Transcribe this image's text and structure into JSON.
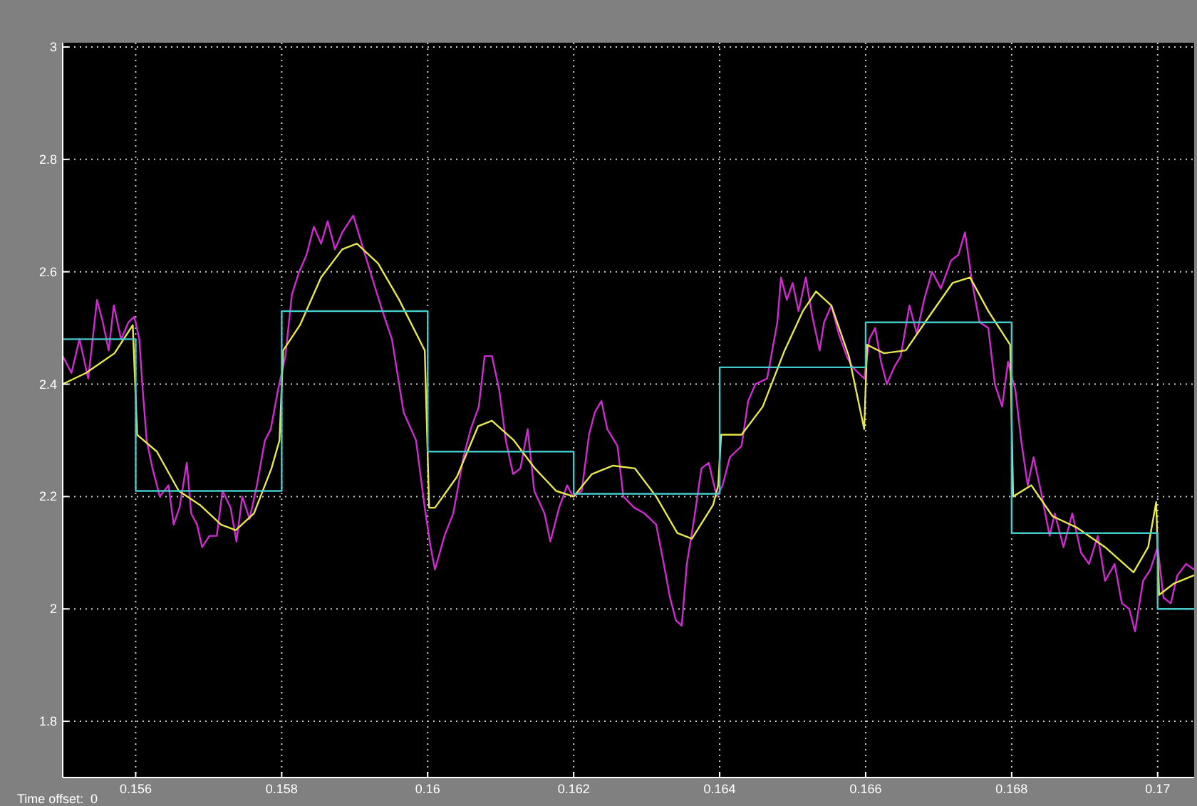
{
  "chart_data": {
    "type": "line",
    "xlim": [
      0.155,
      0.1705
    ],
    "ylim": [
      1.7,
      3
    ],
    "xticks": [
      0.156,
      0.158,
      0.16,
      0.162,
      0.164,
      0.166,
      0.168,
      0.17
    ],
    "yticks": [
      1.8,
      2,
      2.2,
      2.4,
      2.6,
      2.8,
      3
    ],
    "grid": true,
    "line_style": "solid",
    "marker": "none",
    "annotations": [
      "Time offset:  0"
    ],
    "series": [
      {
        "color": "#d22ad2",
        "x": [
          0.155,
          0.15512,
          0.15523,
          0.15535,
          0.15547,
          0.15555,
          0.15563,
          0.1557,
          0.1558,
          0.1559,
          0.15598,
          0.15605,
          0.15609,
          0.15615,
          0.15623,
          0.15633,
          0.15645,
          0.15652,
          0.1566,
          0.1567,
          0.15676,
          0.15684,
          0.15691,
          0.15701,
          0.15711,
          0.15719,
          0.1573,
          0.15738,
          0.15746,
          0.15756,
          0.15766,
          0.15777,
          0.15785,
          0.15795,
          0.15805,
          0.15814,
          0.15824,
          0.15834,
          0.15844,
          0.15854,
          0.15863,
          0.15873,
          0.15883,
          0.15898,
          0.15912,
          0.15926,
          0.15938,
          0.15951,
          0.15967,
          0.15984,
          0.15996,
          0.16004,
          0.1601,
          0.16023,
          0.16035,
          0.16049,
          0.16059,
          0.1607,
          0.16078,
          0.16088,
          0.16098,
          0.16107,
          0.16117,
          0.16127,
          0.16137,
          0.16146,
          0.1616,
          0.16168,
          0.1618,
          0.16191,
          0.16199,
          0.16211,
          0.16221,
          0.16229,
          0.16238,
          0.16246,
          0.1626,
          0.16268,
          0.16283,
          0.16297,
          0.16313,
          0.16322,
          0.16332,
          0.1634,
          0.16348,
          0.16355,
          0.16365,
          0.16375,
          0.16385,
          0.16396,
          0.16404,
          0.16414,
          0.16422,
          0.1643,
          0.16439,
          0.16449,
          0.16465,
          0.16479,
          0.16484,
          0.16492,
          0.165,
          0.16508,
          0.16518,
          0.16527,
          0.16537,
          0.16543,
          0.16553,
          0.16563,
          0.16574,
          0.16582,
          0.1659,
          0.16598,
          0.16605,
          0.16613,
          0.16621,
          0.16629,
          0.16639,
          0.16648,
          0.1666,
          0.1667,
          0.1668,
          0.16691,
          0.16703,
          0.16717,
          0.16727,
          0.16736,
          0.16746,
          0.16756,
          0.16768,
          0.16777,
          0.16787,
          0.16795,
          0.16805,
          0.16813,
          0.16822,
          0.1683,
          0.1684,
          0.16852,
          0.16859,
          0.16871,
          0.16883,
          0.16895,
          0.16906,
          0.16918,
          0.16928,
          0.16941,
          0.16951,
          0.16961,
          0.16969,
          0.1698,
          0.1699,
          0.17,
          0.17008,
          0.17018,
          0.17027,
          0.17039,
          0.1705
        ],
        "values": [
          2.45,
          2.42,
          2.48,
          2.41,
          2.55,
          2.51,
          2.46,
          2.54,
          2.48,
          2.51,
          2.52,
          2.48,
          2.4,
          2.3,
          2.25,
          2.2,
          2.22,
          2.15,
          2.18,
          2.26,
          2.17,
          2.15,
          2.11,
          2.13,
          2.13,
          2.21,
          2.18,
          2.12,
          2.2,
          2.16,
          2.22,
          2.3,
          2.32,
          2.39,
          2.45,
          2.56,
          2.6,
          2.63,
          2.68,
          2.65,
          2.69,
          2.64,
          2.67,
          2.7,
          2.64,
          2.58,
          2.53,
          2.48,
          2.35,
          2.3,
          2.18,
          2.11,
          2.07,
          2.13,
          2.17,
          2.27,
          2.32,
          2.36,
          2.45,
          2.45,
          2.39,
          2.3,
          2.24,
          2.25,
          2.32,
          2.21,
          2.17,
          2.12,
          2.18,
          2.22,
          2.2,
          2.21,
          2.31,
          2.35,
          2.37,
          2.32,
          2.29,
          2.2,
          2.18,
          2.17,
          2.15,
          2.09,
          2.02,
          1.98,
          1.97,
          2.08,
          2.16,
          2.25,
          2.26,
          2.2,
          2.22,
          2.27,
          2.28,
          2.29,
          2.37,
          2.4,
          2.41,
          2.51,
          2.59,
          2.55,
          2.58,
          2.53,
          2.59,
          2.52,
          2.46,
          2.51,
          2.54,
          2.49,
          2.45,
          2.43,
          2.42,
          2.41,
          2.48,
          2.5,
          2.44,
          2.4,
          2.43,
          2.45,
          2.54,
          2.49,
          2.55,
          2.6,
          2.57,
          2.62,
          2.63,
          2.67,
          2.58,
          2.51,
          2.5,
          2.4,
          2.36,
          2.44,
          2.39,
          2.3,
          2.22,
          2.27,
          2.21,
          2.13,
          2.17,
          2.11,
          2.17,
          2.1,
          2.08,
          2.13,
          2.05,
          2.08,
          2.01,
          2,
          1.96,
          2.05,
          2.07,
          2.11,
          2.02,
          2.01,
          2.06,
          2.08,
          2.07
        ]
      },
      {
        "color": "#e8e84a",
        "x": [
          0.155,
          0.15532,
          0.15571,
          0.15596,
          0.15602,
          0.15629,
          0.15659,
          0.15688,
          0.15717,
          0.15737,
          0.15762,
          0.15786,
          0.15797,
          0.15802,
          0.15825,
          0.15854,
          0.15883,
          0.15903,
          0.15932,
          0.15961,
          0.15996,
          0.16002,
          0.1601,
          0.1604,
          0.16069,
          0.16088,
          0.16118,
          0.16147,
          0.16176,
          0.162,
          0.16225,
          0.16254,
          0.16284,
          0.16313,
          0.16342,
          0.16362,
          0.16391,
          0.16398,
          0.16402,
          0.1643,
          0.16459,
          0.16489,
          0.16514,
          0.16532,
          0.16553,
          0.16577,
          0.16598,
          0.16602,
          0.16625,
          0.16655,
          0.16684,
          0.16719,
          0.16743,
          0.16768,
          0.16798,
          0.16802,
          0.16827,
          0.16856,
          0.16889,
          0.16928,
          0.16967,
          0.16987,
          0.16998,
          0.17002,
          0.17022,
          0.1705
        ],
        "values": [
          2.4,
          2.42,
          2.455,
          2.505,
          2.31,
          2.28,
          2.21,
          2.185,
          2.15,
          2.14,
          2.17,
          2.25,
          2.3,
          2.46,
          2.505,
          2.59,
          2.64,
          2.65,
          2.615,
          2.55,
          2.46,
          2.18,
          2.18,
          2.235,
          2.325,
          2.335,
          2.3,
          2.25,
          2.21,
          2.2,
          2.24,
          2.255,
          2.25,
          2.2,
          2.135,
          2.125,
          2.185,
          2.22,
          2.31,
          2.31,
          2.36,
          2.46,
          2.53,
          2.565,
          2.54,
          2.45,
          2.32,
          2.47,
          2.455,
          2.46,
          2.515,
          2.58,
          2.59,
          2.53,
          2.47,
          2.2,
          2.22,
          2.165,
          2.145,
          2.11,
          2.065,
          2.11,
          2.19,
          2.025,
          2.045,
          2.06
        ]
      },
      {
        "type": "step",
        "color": "#45c8c8",
        "x": [
          0.155,
          0.156,
          0.158,
          0.16,
          0.162,
          0.164,
          0.166,
          0.168,
          0.17,
          0.1705
        ],
        "values": [
          2.48,
          2.21,
          2.53,
          2.28,
          2.205,
          2.43,
          2.51,
          2.135,
          2.0,
          2.0
        ]
      }
    ]
  }
}
